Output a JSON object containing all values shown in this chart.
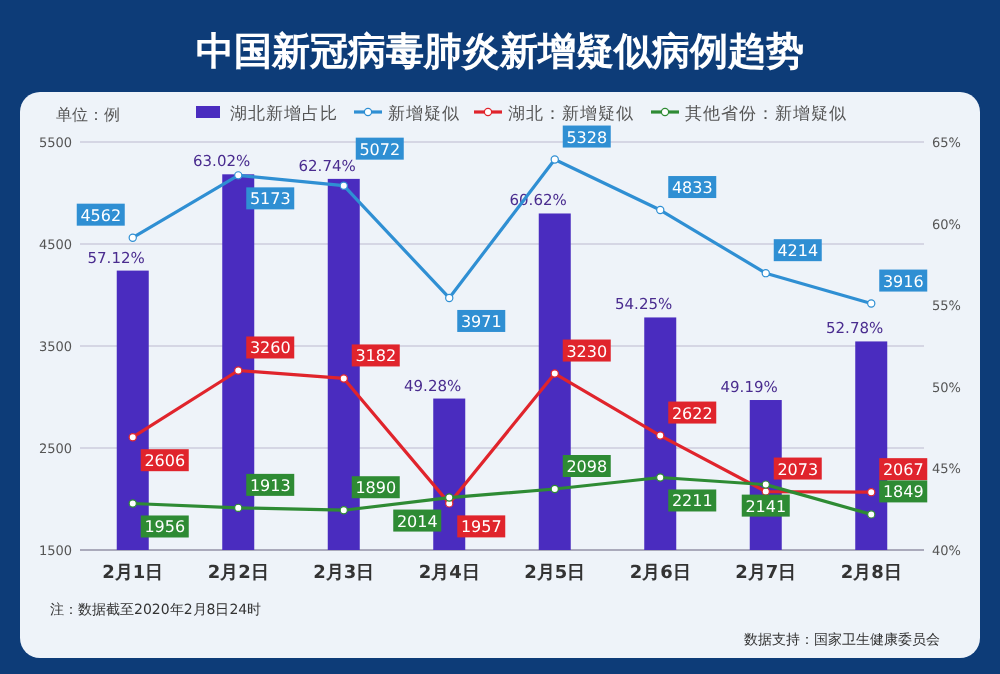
{
  "chart_data": {
    "type": "line",
    "title": "中国新冠病毒肺炎新增疑似病例趋势",
    "ylabel": "单位：例",
    "categories": [
      "2月1日",
      "2月2日",
      "2月3日",
      "2月4日",
      "2月5日",
      "2月6日",
      "2月7日",
      "2月8日"
    ],
    "series": [
      {
        "name": "湖北新增占比",
        "type": "bar",
        "axis": "y2",
        "color": "#4a2cbf",
        "values": [
          57.12,
          63.02,
          62.74,
          49.28,
          60.62,
          54.25,
          49.19,
          52.78
        ],
        "value_labels": [
          "57.12%",
          "63.02%",
          "62.74%",
          "49.28%",
          "60.62%",
          "54.25%",
          "49.19%",
          "52.78%"
        ]
      },
      {
        "name": "新增疑似",
        "color": "#2f8fd3",
        "values": [
          4562,
          5173,
          5072,
          3971,
          5328,
          4833,
          4214,
          3916
        ],
        "value_labels": [
          "4562",
          "5173",
          "5072",
          "3971",
          "5328",
          "4833",
          "4214",
          "3916"
        ]
      },
      {
        "name": "湖北：新增疑似",
        "color": "#e0242c",
        "values": [
          2606,
          3260,
          3182,
          1957,
          3230,
          2622,
          2073,
          2067
        ],
        "value_labels": [
          "2606",
          "3260",
          "3182",
          "1957",
          "3230",
          "2622",
          "2073",
          "2067"
        ]
      },
      {
        "name": "其他省份：新增疑似",
        "color": "#2e8b34",
        "values": [
          1956,
          1913,
          1890,
          2014,
          2098,
          2211,
          2141,
          1849
        ],
        "value_labels": [
          "1956",
          "1913",
          "1890",
          "2014",
          "2098",
          "2211",
          "2141",
          "1849"
        ]
      }
    ],
    "ylim": [
      1500,
      5500
    ],
    "yticks": [
      1500,
      2500,
      3500,
      4500,
      5500
    ],
    "y2lim": [
      40,
      65
    ],
    "y2ticks": [
      {
        "value": 40,
        "label": "40%"
      },
      {
        "value": 45,
        "label": "45%"
      },
      {
        "value": 50,
        "label": "50%"
      },
      {
        "value": 55,
        "label": "55%"
      },
      {
        "value": 60,
        "label": "60%"
      },
      {
        "value": 65,
        "label": "65%"
      }
    ],
    "grid": "y",
    "legend": "top",
    "marker": "circle",
    "line_style": "solid",
    "annotations": [
      "注：数据截至2020年2月8日24时",
      "数据支持：国家卫生健康委员会"
    ]
  }
}
